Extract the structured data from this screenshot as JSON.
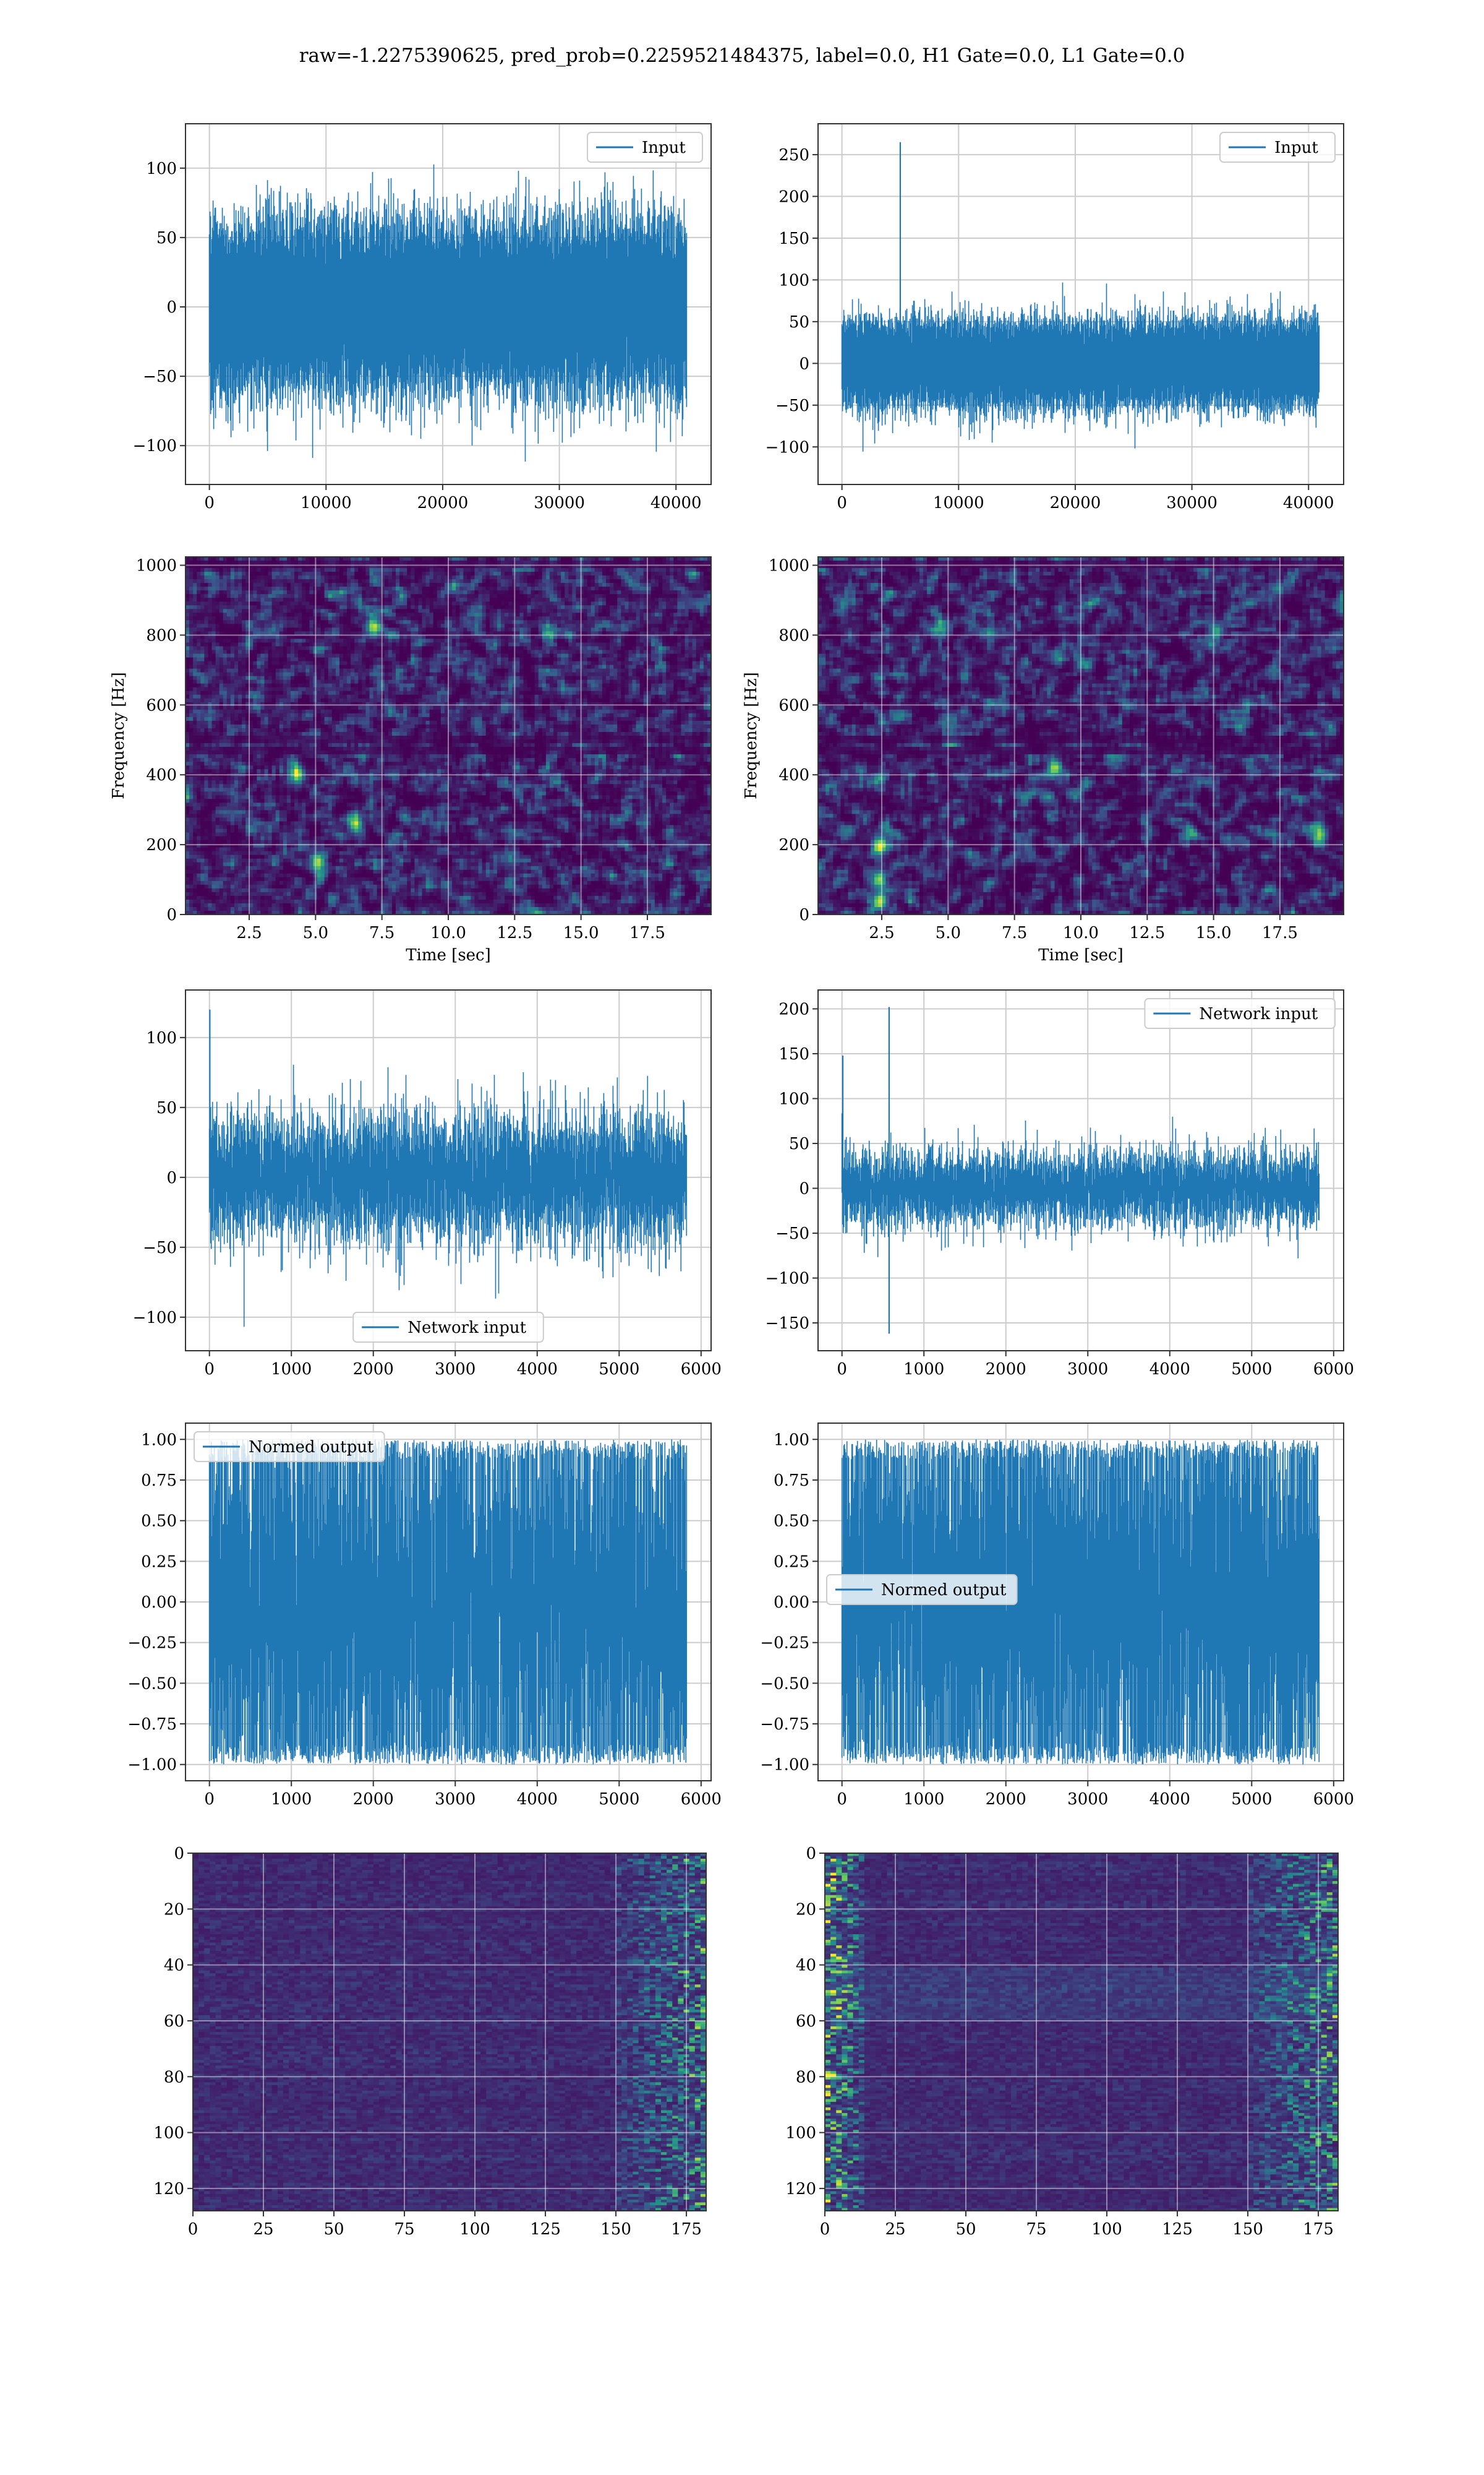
{
  "figure": {
    "suptitle": "raw=-1.2275390625, pred_prob=0.2259521484375, label=0.0, H1 Gate=0.0, L1 Gate=0.0",
    "colors": {
      "line": "#1f77b4",
      "grid": "#cccccc",
      "axis": "#333333"
    }
  },
  "chart_data": [
    {
      "id": "h1-input",
      "type": "line",
      "row": 0,
      "col": 0,
      "series": [
        {
          "name": "Input",
          "n": 40960,
          "std": 28,
          "clip": [
            -115,
            120
          ],
          "spikes": []
        }
      ],
      "xlim": [
        -2048,
        43008
      ],
      "ylim": [
        -128,
        132
      ],
      "xticks": [
        0,
        10000,
        20000,
        30000,
        40000
      ],
      "yticks": [
        -100,
        -50,
        0,
        50,
        100
      ],
      "legend": "top-right",
      "grid": true
    },
    {
      "id": "l1-input",
      "type": "line",
      "row": 0,
      "col": 1,
      "series": [
        {
          "name": "Input",
          "n": 40960,
          "std": 24,
          "clip": [
            -118,
            135
          ],
          "spikes": [
            [
              5000,
              265
            ]
          ]
        }
      ],
      "xlim": [
        -2048,
        43008
      ],
      "ylim": [
        -145,
        287
      ],
      "xticks": [
        0,
        10000,
        20000,
        30000,
        40000
      ],
      "yticks": [
        -100,
        -50,
        0,
        50,
        100,
        150,
        200,
        250
      ],
      "legend": "top-right",
      "grid": true
    },
    {
      "id": "h1-spectrogram",
      "type": "heatmap",
      "row": 1,
      "col": 0,
      "xlabel": "Time [sec]",
      "ylabel": "Frequency [Hz]",
      "xlim": [
        0.1,
        19.9
      ],
      "ylim": [
        0,
        1024
      ],
      "xticks": [
        2.5,
        5.0,
        7.5,
        10.0,
        12.5,
        15.0,
        17.5
      ],
      "xticklabels": [
        "2.5",
        "5.0",
        "7.5",
        "10.0",
        "12.5",
        "15.0",
        "17.5"
      ],
      "yticks": [
        0,
        200,
        400,
        600,
        800,
        1000
      ],
      "colormap": "viridis",
      "grid": true,
      "dark_bands_hz": [
        500,
        470,
        1000
      ],
      "hotspots": [
        [
          4.3,
          400
        ],
        [
          6.5,
          260
        ],
        [
          7.2,
          820
        ],
        [
          5.1,
          150
        ]
      ]
    },
    {
      "id": "l1-spectrogram",
      "type": "heatmap",
      "row": 1,
      "col": 1,
      "xlabel": "Time [sec]",
      "ylabel": "Frequency [Hz]",
      "xlim": [
        0.1,
        19.9
      ],
      "ylim": [
        0,
        1024
      ],
      "xticks": [
        2.5,
        5.0,
        7.5,
        10.0,
        12.5,
        15.0,
        17.5
      ],
      "xticklabels": [
        "2.5",
        "5.0",
        "7.5",
        "10.0",
        "12.5",
        "15.0",
        "17.5"
      ],
      "yticks": [
        0,
        200,
        400,
        600,
        800,
        1000
      ],
      "colormap": "viridis",
      "grid": true,
      "dark_bands_hz": [
        500,
        470,
        1000
      ],
      "hotspots": [
        [
          2.4,
          100
        ],
        [
          2.45,
          40
        ],
        [
          2.4,
          200
        ],
        [
          19.0,
          230
        ],
        [
          9.0,
          420
        ]
      ]
    },
    {
      "id": "h1-network-input",
      "type": "line",
      "row": 2,
      "col": 0,
      "series": [
        {
          "name": "Network input",
          "n": 5830,
          "std": 24,
          "clip": [
            -110,
            120
          ],
          "spikes": [
            [
              5,
              120
            ]
          ]
        }
      ],
      "xlim": [
        -292,
        6122
      ],
      "ylim": [
        -124,
        134
      ],
      "xticks": [
        0,
        1000,
        2000,
        3000,
        4000,
        5000,
        6000
      ],
      "yticks": [
        -100,
        -50,
        0,
        50,
        100
      ],
      "legend": "bottom-center",
      "grid": true
    },
    {
      "id": "l1-network-input",
      "type": "line",
      "row": 2,
      "col": 1,
      "series": [
        {
          "name": "Network input",
          "n": 5830,
          "std": 22,
          "clip": [
            -115,
            180
          ],
          "spikes": [
            [
              575,
              202
            ],
            [
              575,
              -162
            ],
            [
              10,
              148
            ]
          ]
        }
      ],
      "xlim": [
        -292,
        6122
      ],
      "ylim": [
        -181,
        221
      ],
      "xticks": [
        0,
        1000,
        2000,
        3000,
        4000,
        5000,
        6000
      ],
      "yticks": [
        -150,
        -100,
        -50,
        0,
        50,
        100,
        150,
        200
      ],
      "legend": "top-right",
      "grid": true
    },
    {
      "id": "h1-normed-output",
      "type": "line",
      "row": 3,
      "col": 0,
      "series": [
        {
          "name": "Normed output",
          "n": 5830,
          "std": 0.55,
          "clip": [
            -1.0,
            1.0
          ],
          "spikes": []
        }
      ],
      "xlim": [
        -292,
        6122
      ],
      "ylim": [
        -1.1,
        1.1
      ],
      "xticks": [
        0,
        1000,
        2000,
        3000,
        4000,
        5000,
        6000
      ],
      "yticks": [
        -1.0,
        -0.75,
        -0.5,
        -0.25,
        0.0,
        0.25,
        0.5,
        0.75,
        1.0
      ],
      "yticklabels": [
        "−1.00",
        "−0.75",
        "−0.50",
        "−0.25",
        "0.00",
        "0.25",
        "0.50",
        "0.75",
        "1.00"
      ],
      "legend": "top-left",
      "grid": true
    },
    {
      "id": "l1-normed-output",
      "type": "line",
      "row": 3,
      "col": 1,
      "series": [
        {
          "name": "Normed output",
          "n": 5830,
          "std": 0.55,
          "clip": [
            -1.0,
            1.0
          ],
          "spikes": []
        }
      ],
      "xlim": [
        -292,
        6122
      ],
      "ylim": [
        -1.1,
        1.1
      ],
      "xticks": [
        0,
        1000,
        2000,
        3000,
        4000,
        5000,
        6000
      ],
      "yticks": [
        -1.0,
        -0.75,
        -0.5,
        -0.25,
        0.0,
        0.25,
        0.5,
        0.75,
        1.0
      ],
      "yticklabels": [
        "−1.00",
        "−0.75",
        "−0.50",
        "−0.25",
        "0.00",
        "0.25",
        "0.50",
        "0.75",
        "1.00"
      ],
      "legend": "center-left",
      "grid": true
    },
    {
      "id": "h1-feature-map",
      "type": "heatmap",
      "row": 4,
      "col": 0,
      "xlim": [
        0,
        182
      ],
      "ylim": [
        128,
        0
      ],
      "xticks": [
        0,
        25,
        50,
        75,
        100,
        125,
        150,
        175
      ],
      "yticks": [
        0,
        20,
        40,
        60,
        80,
        100,
        120
      ],
      "colormap": "viridis",
      "grid": true,
      "rows": 128,
      "cols": 182,
      "edge_activity": "right"
    },
    {
      "id": "l1-feature-map",
      "type": "heatmap",
      "row": 4,
      "col": 1,
      "xlim": [
        0,
        182
      ],
      "ylim": [
        128,
        0
      ],
      "xticks": [
        0,
        25,
        50,
        75,
        100,
        125,
        150,
        175
      ],
      "yticks": [
        0,
        20,
        40,
        60,
        80,
        100,
        120
      ],
      "colormap": "viridis",
      "grid": true,
      "rows": 128,
      "cols": 182,
      "edge_activity": "both"
    }
  ]
}
